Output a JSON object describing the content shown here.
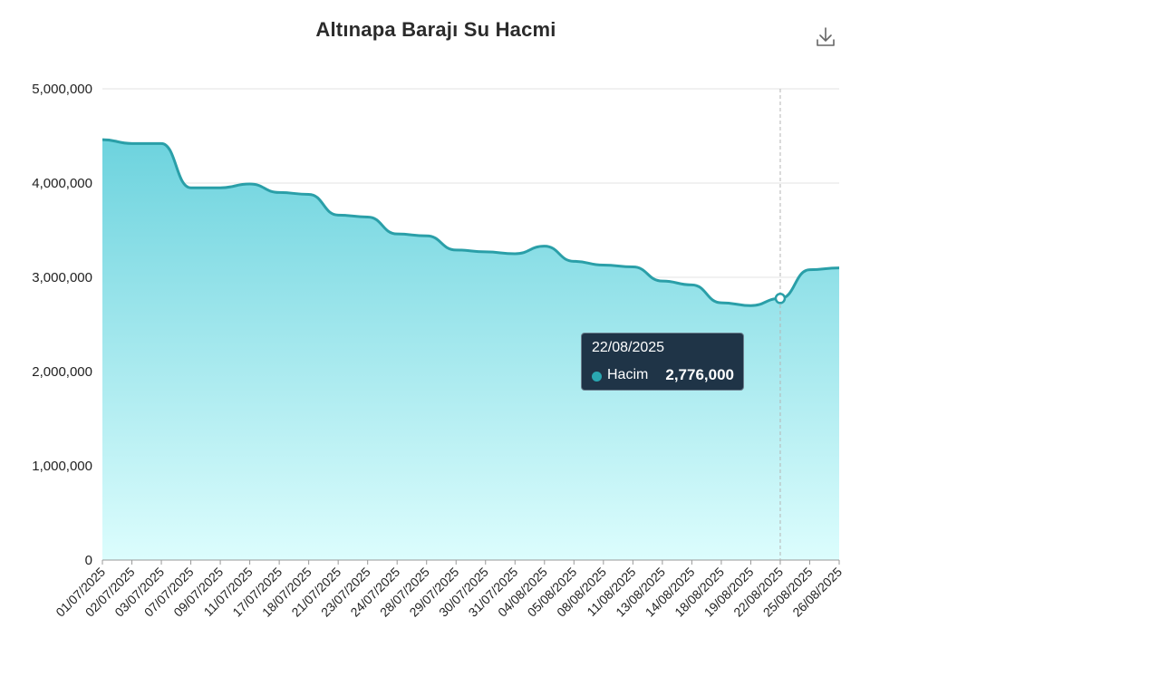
{
  "title": "Altınapa Barajı Su Hacmi",
  "download_icon": "download-icon",
  "colors": {
    "line": "#2a9fa8",
    "area_top": "#6dd3de",
    "area_bottom": "#dcfdfd",
    "grid": "#e3e3e3",
    "tooltip_bg": "#1f3447",
    "marker": "#2a9fa8"
  },
  "chart_data": {
    "type": "area",
    "categories": [
      "01/07/2025",
      "02/07/2025",
      "03/07/2025",
      "07/07/2025",
      "09/07/2025",
      "11/07/2025",
      "17/07/2025",
      "18/07/2025",
      "21/07/2025",
      "23/07/2025",
      "24/07/2025",
      "28/07/2025",
      "29/07/2025",
      "30/07/2025",
      "31/07/2025",
      "04/08/2025",
      "05/08/2025",
      "08/08/2025",
      "11/08/2025",
      "13/08/2025",
      "14/08/2025",
      "18/08/2025",
      "19/08/2025",
      "22/08/2025",
      "25/08/2025",
      "26/08/2025"
    ],
    "series": [
      {
        "name": "Hacim",
        "values": [
          4460000,
          4420000,
          4420000,
          3950000,
          3950000,
          3990000,
          3900000,
          3880000,
          3660000,
          3640000,
          3460000,
          3440000,
          3290000,
          3270000,
          3250000,
          3330000,
          3170000,
          3130000,
          3110000,
          2960000,
          2920000,
          2730000,
          2700000,
          2776000,
          3080000,
          3100000
        ]
      }
    ],
    "ylim": [
      0,
      5000000
    ],
    "yticks": [
      0,
      1000000,
      2000000,
      3000000,
      4000000,
      5000000
    ],
    "ytick_labels": [
      "0",
      "1,000,000",
      "2,000,000",
      "3,000,000",
      "4,000,000",
      "5,000,000"
    ],
    "grid": true,
    "legend": "none"
  },
  "tooltip": {
    "date": "22/08/2025",
    "series_name": "Hacim",
    "value": "2,776,000",
    "index": 23
  }
}
